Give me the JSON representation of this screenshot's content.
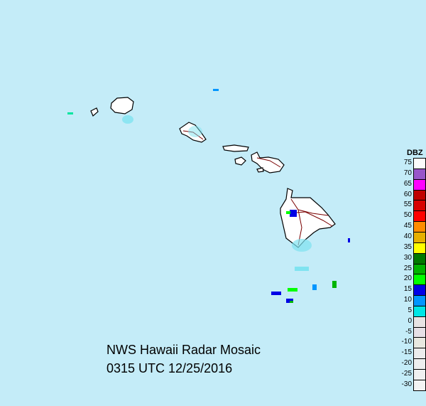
{
  "title": "NWS Hawaii Radar Mosaic",
  "timestamp": "0315 UTC 12/25/2016",
  "legend": {
    "title": "DBZ",
    "entries": [
      {
        "label": "75",
        "color": "#fbfbfb"
      },
      {
        "label": "70",
        "color": "#9955c9"
      },
      {
        "label": "65",
        "color": "#ff00ff"
      },
      {
        "label": "60",
        "color": "#c00000"
      },
      {
        "label": "55",
        "color": "#d80000"
      },
      {
        "label": "50",
        "color": "#ff0000"
      },
      {
        "label": "45",
        "color": "#ff8c00"
      },
      {
        "label": "40",
        "color": "#e6b000"
      },
      {
        "label": "35",
        "color": "#ffff00"
      },
      {
        "label": "30",
        "color": "#007a00"
      },
      {
        "label": "25",
        "color": "#00b400"
      },
      {
        "label": "20",
        "color": "#00ff00"
      },
      {
        "label": "15",
        "color": "#0000e6"
      },
      {
        "label": "10",
        "color": "#0096ff"
      },
      {
        "label": "5",
        "color": "#00e6e6"
      },
      {
        "label": "0",
        "color": "#e8e4e4"
      },
      {
        "label": "-5",
        "color": "#e6e0e6"
      },
      {
        "label": "-10",
        "color": "#e8e8e0"
      },
      {
        "label": "-15",
        "color": "#ececec"
      },
      {
        "label": "-20",
        "color": "#eeeeee"
      },
      {
        "label": "-25",
        "color": "#f0f0f0"
      },
      {
        "label": "-30",
        "color": "#f4f4f4"
      }
    ]
  },
  "colors": {
    "ocean": "#c4ecf8",
    "land": "#ffffff",
    "coast": "#000000",
    "roads": "#7a0000"
  }
}
